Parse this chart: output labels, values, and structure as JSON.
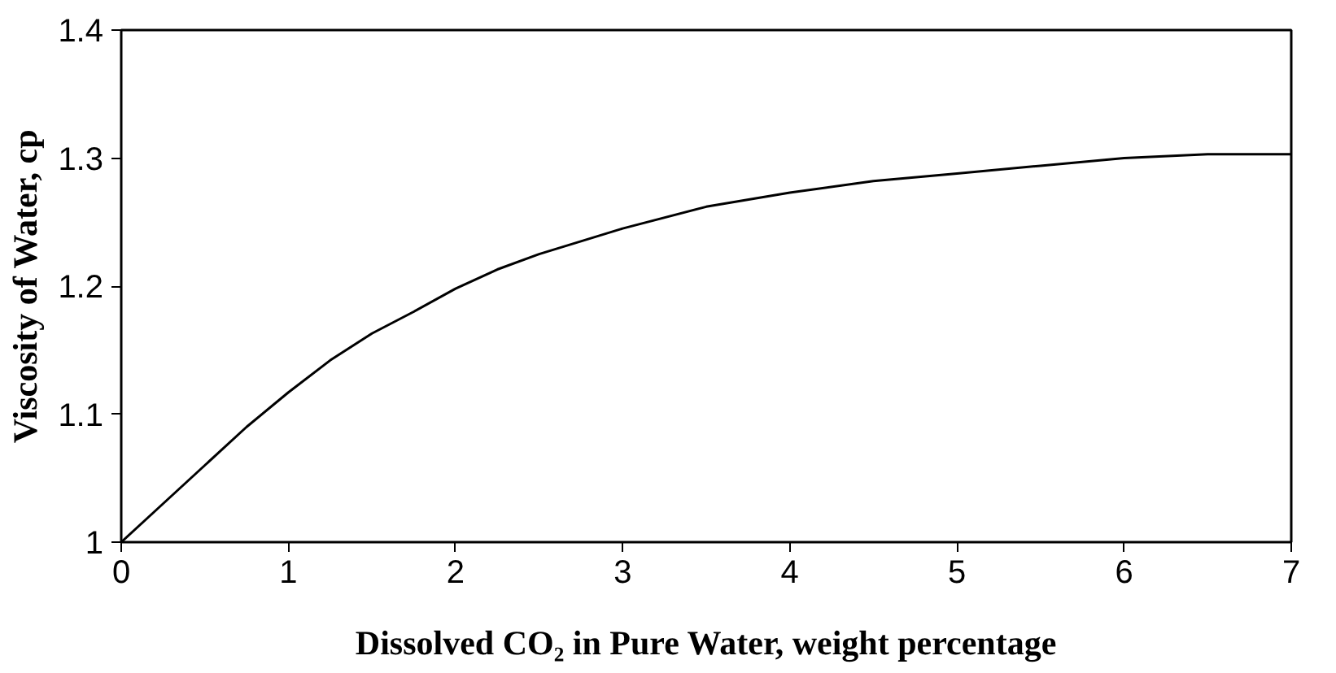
{
  "chart_data": {
    "type": "line",
    "xlabel": "Dissolved CO₂ in Pure Water, weight percentage",
    "ylabel": "Viscosity of Water, cp",
    "x": [
      0,
      0.25,
      0.5,
      0.75,
      1,
      1.25,
      1.5,
      1.75,
      2,
      2.25,
      2.5,
      2.75,
      3,
      3.5,
      4,
      4.5,
      5,
      5.5,
      6,
      6.5,
      7
    ],
    "series": [
      {
        "color": "#000000",
        "values": [
          1.0,
          1.03,
          1.06,
          1.09,
          1.117,
          1.142,
          1.163,
          1.18,
          1.198,
          1.213,
          1.225,
          1.235,
          1.245,
          1.262,
          1.273,
          1.282,
          1.288,
          1.294,
          1.3,
          1.303,
          1.303
        ]
      }
    ],
    "xlim": [
      0,
      7
    ],
    "xticks": [
      0,
      1,
      2,
      3,
      4,
      5,
      6,
      7
    ],
    "ylim": [
      1,
      1.4
    ],
    "yticks": [
      1,
      1.1,
      1.2,
      1.3,
      1.4
    ],
    "grid": false,
    "marker": "none",
    "line_style": "solid"
  }
}
